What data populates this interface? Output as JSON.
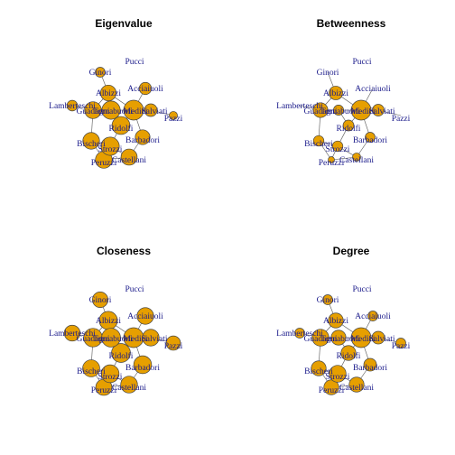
{
  "colors": {
    "node_fill": "#e69f00",
    "label": "#1a1a8a",
    "edge": "#555555"
  },
  "nodes": [
    "Acciaiuoli",
    "Albizzi",
    "Barbadori",
    "Bischeri",
    "Castellani",
    "Ginori",
    "Guadagni",
    "Lamberteschi",
    "Medici",
    "Pazzi",
    "Peruzzi",
    "Pucci",
    "Ridolfi",
    "Salviati",
    "Strozzi",
    "Tornabuoni"
  ],
  "edges": [
    [
      "Acciaiuoli",
      "Medici"
    ],
    [
      "Albizzi",
      "Ginori"
    ],
    [
      "Albizzi",
      "Guadagni"
    ],
    [
      "Albizzi",
      "Medici"
    ],
    [
      "Barbadori",
      "Castellani"
    ],
    [
      "Barbadori",
      "Medici"
    ],
    [
      "Bischeri",
      "Guadagni"
    ],
    [
      "Bischeri",
      "Peruzzi"
    ],
    [
      "Bischeri",
      "Strozzi"
    ],
    [
      "Castellani",
      "Peruzzi"
    ],
    [
      "Castellani",
      "Strozzi"
    ],
    [
      "Guadagni",
      "Lamberteschi"
    ],
    [
      "Guadagni",
      "Tornabuoni"
    ],
    [
      "Medici",
      "Ridolfi"
    ],
    [
      "Medici",
      "Salviati"
    ],
    [
      "Medici",
      "Tornabuoni"
    ],
    [
      "Pazzi",
      "Salviati"
    ],
    [
      "Peruzzi",
      "Strozzi"
    ],
    [
      "Ridolfi",
      "Strozzi"
    ],
    [
      "Ridolfi",
      "Tornabuoni"
    ]
  ],
  "panels": [
    {
      "title": "Eigenvalue",
      "sizes": {
        "Acciaiuoli": 0.3,
        "Albizzi": 0.57,
        "Barbadori": 0.49,
        "Bischeri": 0.66,
        "Castellani": 0.61,
        "Ginori": 0.17,
        "Guadagni": 0.67,
        "Lamberteschi": 0.21,
        "Medici": 1.0,
        "Pazzi": 0.1,
        "Peruzzi": 0.67,
        "Pucci": 0.0,
        "Ridolfi": 0.79,
        "Salviati": 0.33,
        "Strozzi": 0.83,
        "Tornabuoni": 0.83
      }
    },
    {
      "title": "Betweenness",
      "sizes": {
        "Acciaiuoli": 0.0,
        "Albizzi": 0.4,
        "Barbadori": 0.17,
        "Bischeri": 0.2,
        "Castellani": 0.1,
        "Ginori": 0.0,
        "Guadagni": 0.49,
        "Lamberteschi": 0.0,
        "Medici": 1.0,
        "Pazzi": 0.0,
        "Peruzzi": 0.04,
        "Pucci": 0.0,
        "Ridolfi": 0.22,
        "Salviati": 0.27,
        "Strozzi": 0.2,
        "Tornabuoni": 0.18
      }
    },
    {
      "title": "Closeness",
      "sizes": {
        "Acciaiuoli": 0.66,
        "Albizzi": 0.82,
        "Barbadori": 0.77,
        "Bischeri": 0.7,
        "Castellani": 0.67,
        "Ginori": 0.56,
        "Guadagni": 0.86,
        "Lamberteschi": 0.58,
        "Medici": 1.0,
        "Pazzi": 0.45,
        "Peruzzi": 0.61,
        "Pucci": 0.0,
        "Ridolfi": 0.89,
        "Salviati": 0.66,
        "Strozzi": 0.77,
        "Tornabuoni": 0.88
      }
    },
    {
      "title": "Degree",
      "sizes": {
        "Acciaiuoli": 0.17,
        "Albizzi": 0.5,
        "Barbadori": 0.33,
        "Bischeri": 0.5,
        "Castellani": 0.5,
        "Ginori": 0.17,
        "Guadagni": 0.67,
        "Lamberteschi": 0.17,
        "Medici": 1.0,
        "Pazzi": 0.17,
        "Peruzzi": 0.5,
        "Pucci": 0.0,
        "Ridolfi": 0.5,
        "Salviati": 0.33,
        "Strozzi": 0.67,
        "Tornabuoni": 0.5
      }
    }
  ]
}
